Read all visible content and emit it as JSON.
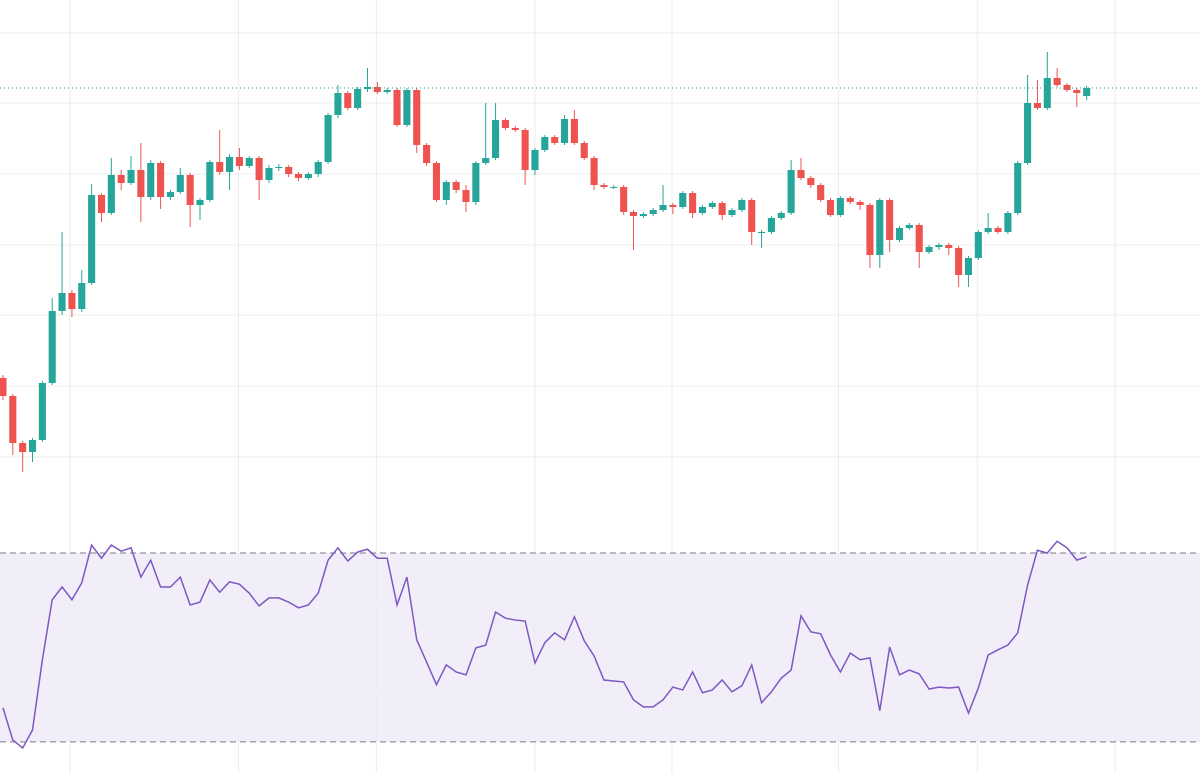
{
  "chart_data": [
    {
      "type": "candlestick",
      "up_color": "#26a69a",
      "down_color": "#ef5350",
      "xlim": [
        -0.3,
        121.5
      ],
      "xticks": [
        6.8,
        23.9,
        37.9,
        54,
        67.9,
        84.8,
        98.9,
        112.9
      ],
      "ylim": [
        0,
        520
      ],
      "yticks": [
        63,
        134,
        205,
        275,
        346,
        417,
        487
      ],
      "grid": true,
      "last_price_line": true,
      "last_price_color": "#26a69a",
      "open": [
        142,
        124,
        77,
        68,
        80,
        137,
        209,
        227,
        211,
        237,
        325,
        307,
        345,
        337,
        350,
        323,
        357,
        323,
        328,
        345,
        315,
        320,
        358,
        348,
        363,
        354,
        362,
        340,
        352,
        353,
        346,
        342,
        346,
        358,
        405,
        427,
        412,
        431,
        433,
        428,
        430,
        395,
        430,
        375,
        357,
        320,
        338,
        330,
        318,
        357,
        362,
        400,
        392,
        390,
        350,
        370,
        383,
        377,
        401,
        377,
        362,
        335,
        333,
        333,
        308,
        304,
        306,
        310,
        315,
        313,
        327,
        307,
        313,
        317,
        305,
        310,
        320,
        288,
        288,
        302,
        307,
        350,
        342,
        335,
        320,
        305,
        322,
        318,
        315,
        265,
        320,
        280,
        292,
        295,
        268,
        273,
        275,
        272,
        245,
        262,
        288,
        292,
        288,
        307,
        357,
        417,
        412,
        442,
        435,
        430,
        424
      ],
      "high": [
        145,
        126,
        79,
        82,
        139,
        222,
        288,
        230,
        250,
        336,
        327,
        362,
        350,
        364,
        377,
        360,
        359,
        330,
        352,
        347,
        322,
        360,
        390,
        366,
        372,
        364,
        364,
        355,
        356,
        355,
        348,
        348,
        360,
        407,
        435,
        429,
        433,
        452,
        438,
        432,
        432,
        432,
        432,
        377,
        359,
        340,
        340,
        335,
        359,
        417,
        417,
        402,
        394,
        392,
        372,
        385,
        385,
        405,
        410,
        379,
        364,
        337,
        335,
        335,
        310,
        308,
        312,
        335,
        317,
        329,
        329,
        315,
        319,
        319,
        312,
        322,
        322,
        290,
        304,
        309,
        360,
        362,
        344,
        337,
        322,
        324,
        324,
        320,
        317,
        322,
        322,
        294,
        297,
        297,
        275,
        277,
        277,
        274,
        264,
        290,
        307,
        294,
        309,
        359,
        445,
        440,
        468,
        452,
        437,
        432,
        434
      ],
      "low": [
        120,
        65,
        48,
        58,
        78,
        135,
        205,
        203,
        208,
        235,
        298,
        305,
        330,
        335,
        298,
        320,
        311,
        320,
        326,
        293,
        300,
        318,
        345,
        330,
        350,
        352,
        320,
        337,
        349,
        343,
        339,
        340,
        343,
        356,
        402,
        410,
        410,
        428,
        426,
        426,
        393,
        393,
        367,
        354,
        318,
        315,
        327,
        308,
        315,
        355,
        360,
        390,
        388,
        335,
        345,
        368,
        375,
        375,
        375,
        360,
        330,
        331,
        331,
        305,
        270,
        302,
        304,
        308,
        306,
        311,
        302,
        305,
        311,
        300,
        303,
        308,
        275,
        272,
        286,
        300,
        305,
        340,
        332,
        318,
        303,
        303,
        316,
        310,
        252,
        252,
        268,
        278,
        290,
        252,
        266,
        270,
        265,
        233,
        233,
        260,
        286,
        286,
        286,
        305,
        355,
        410,
        410,
        433,
        428,
        413,
        420
      ],
      "close": [
        124,
        77,
        68,
        80,
        137,
        209,
        227,
        211,
        237,
        325,
        307,
        345,
        337,
        350,
        323,
        357,
        323,
        328,
        345,
        315,
        320,
        358,
        348,
        363,
        354,
        362,
        340,
        352,
        353,
        346,
        342,
        346,
        358,
        405,
        427,
        412,
        431,
        433,
        428,
        430,
        395,
        430,
        375,
        357,
        320,
        338,
        330,
        318,
        357,
        362,
        400,
        392,
        390,
        350,
        370,
        383,
        377,
        401,
        377,
        362,
        335,
        333,
        333,
        308,
        304,
        306,
        310,
        315,
        313,
        327,
        307,
        313,
        317,
        305,
        310,
        320,
        288,
        288,
        302,
        307,
        350,
        342,
        335,
        320,
        305,
        322,
        318,
        315,
        265,
        320,
        280,
        292,
        295,
        268,
        273,
        275,
        272,
        245,
        262,
        288,
        292,
        288,
        307,
        357,
        417,
        412,
        442,
        435,
        430,
        427,
        432
      ]
    },
    {
      "type": "line",
      "color": "#7e57c2",
      "band_color": "#7e57c2",
      "ylim": [
        23.4,
        77.0
      ],
      "yticks": [
        40,
        60
      ],
      "bands": [
        30,
        70
      ],
      "values": [
        37.2,
        30.4,
        28.7,
        32.5,
        47.4,
        60.1,
        62.8,
        60.1,
        63.7,
        71.7,
        68.9,
        71.7,
        70.4,
        71.1,
        64.9,
        68.5,
        62.8,
        62.8,
        64.9,
        59.0,
        59.6,
        64.3,
        61.7,
        63.9,
        63.4,
        61.5,
        58.8,
        60.5,
        60.5,
        59.6,
        58.4,
        59.0,
        61.5,
        68.5,
        71.1,
        68.3,
        70.2,
        70.8,
        68.9,
        68.9,
        59.0,
        64.9,
        51.6,
        46.9,
        42.1,
        46.3,
        44.8,
        44.2,
        49.9,
        50.5,
        57.5,
        56.2,
        55.8,
        55.6,
        46.7,
        51.0,
        53.1,
        51.6,
        56.5,
        51.4,
        48.2,
        43.1,
        42.9,
        42.7,
        38.9,
        37.4,
        37.4,
        38.9,
        41.6,
        41.0,
        44.8,
        40.4,
        41.0,
        43.1,
        40.6,
        41.9,
        46.3,
        38.3,
        40.6,
        43.5,
        45.2,
        56.7,
        53.3,
        52.9,
        48.4,
        44.8,
        48.8,
        47.4,
        47.8,
        36.6,
        50.1,
        44.2,
        45.2,
        44.4,
        41.2,
        41.6,
        41.4,
        41.6,
        36.1,
        41.4,
        48.4,
        49.5,
        50.5,
        53.1,
        63.2,
        70.6,
        70.0,
        72.5,
        71.1,
        68.5,
        69.2
      ]
    }
  ]
}
